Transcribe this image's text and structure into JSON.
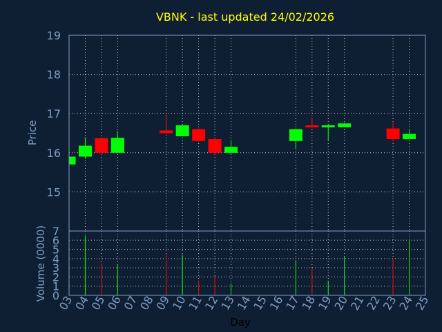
{
  "chart_data": {
    "type": "candlestick",
    "title": "VBNK - last updated 24/02/2026",
    "xlabel": "Day",
    "price_ylabel": "Price",
    "volume_ylabel": "Volume (0000)",
    "x_ticks": [
      "03",
      "04",
      "05",
      "06",
      "07",
      "08",
      "09",
      "10",
      "11",
      "12",
      "13",
      "14",
      "15",
      "16",
      "17",
      "18",
      "19",
      "20",
      "21",
      "22",
      "23",
      "24",
      "25"
    ],
    "price_ylim": [
      14.0,
      19.0
    ],
    "price_ticks": [
      "15",
      "16",
      "17",
      "18",
      "19"
    ],
    "volume_ylim": [
      0,
      7
    ],
    "volume_ticks": [
      "0",
      "1",
      "2",
      "3",
      "4",
      "5",
      "6",
      "7"
    ],
    "grid": true,
    "up_color": "#00ff00",
    "down_color": "#ff0000",
    "candles": [
      {
        "day": "03",
        "open": 15.7,
        "high": 15.9,
        "low": 15.7,
        "close": 15.9,
        "volume": 0.2
      },
      {
        "day": "04",
        "open": 15.9,
        "high": 16.4,
        "low": 15.85,
        "close": 16.18,
        "volume": 6.5
      },
      {
        "day": "05",
        "open": 16.37,
        "high": 16.37,
        "low": 15.95,
        "close": 16.0,
        "volume": 3.5
      },
      {
        "day": "06",
        "open": 16.0,
        "high": 16.55,
        "low": 16.0,
        "close": 16.38,
        "volume": 3.3
      },
      {
        "day": "09",
        "open": 16.57,
        "high": 17.0,
        "low": 16.48,
        "close": 16.5,
        "volume": 4.5
      },
      {
        "day": "10",
        "open": 16.42,
        "high": 16.72,
        "low": 16.42,
        "close": 16.7,
        "volume": 4.4
      },
      {
        "day": "11",
        "open": 16.6,
        "high": 16.62,
        "low": 16.28,
        "close": 16.3,
        "volume": 1.6
      },
      {
        "day": "12",
        "open": 16.35,
        "high": 16.35,
        "low": 15.95,
        "close": 16.0,
        "volume": 2.1
      },
      {
        "day": "13",
        "open": 16.0,
        "high": 16.32,
        "low": 15.95,
        "close": 16.15,
        "volume": 1.2
      },
      {
        "day": "17",
        "open": 16.3,
        "high": 16.62,
        "low": 16.1,
        "close": 16.6,
        "volume": 3.8
      },
      {
        "day": "18",
        "open": 16.7,
        "high": 16.9,
        "low": 16.65,
        "close": 16.65,
        "volume": 2.9
      },
      {
        "day": "19",
        "open": 16.65,
        "high": 16.72,
        "low": 16.3,
        "close": 16.7,
        "volume": 1.6
      },
      {
        "day": "20",
        "open": 16.65,
        "high": 16.76,
        "low": 16.65,
        "close": 16.75,
        "volume": 4.2
      },
      {
        "day": "23",
        "open": 16.62,
        "high": 16.78,
        "low": 16.28,
        "close": 16.35,
        "volume": 4.0
      },
      {
        "day": "24",
        "open": 16.35,
        "high": 16.6,
        "low": 16.35,
        "close": 16.48,
        "volume": 6.1
      }
    ]
  }
}
